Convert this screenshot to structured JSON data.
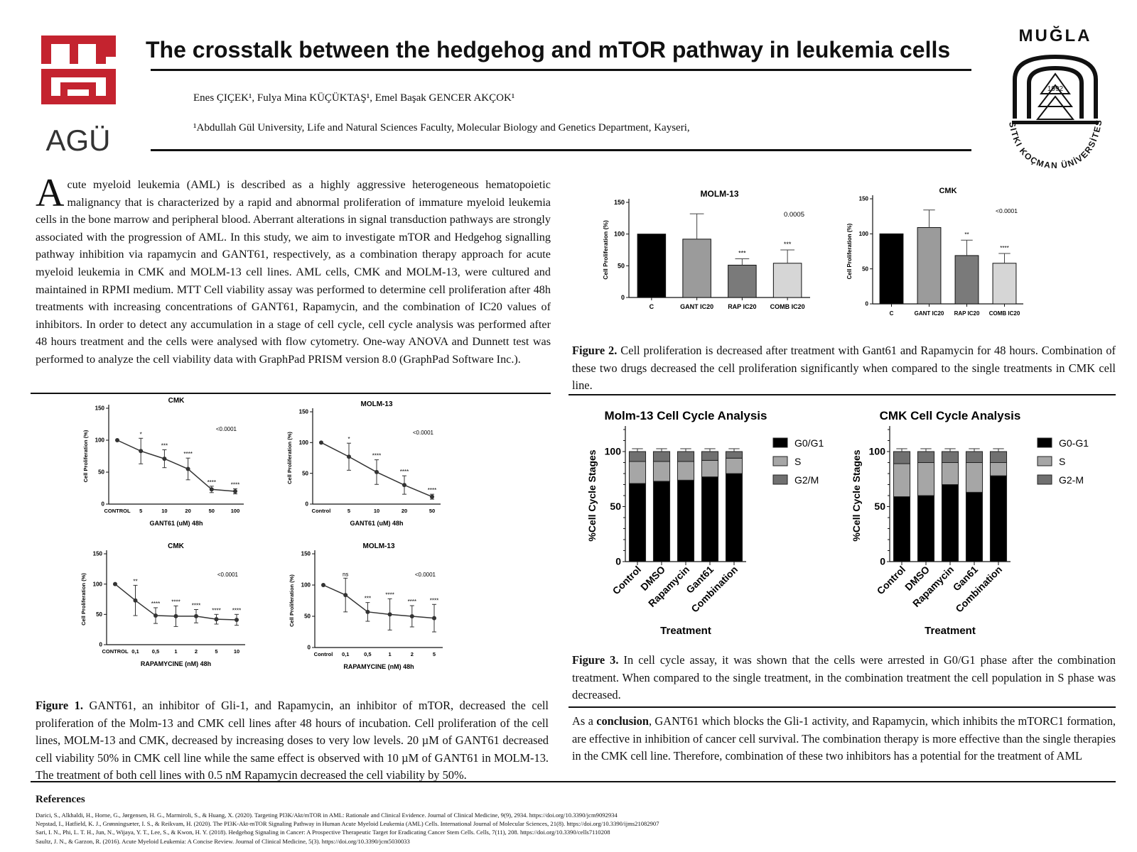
{
  "header": {
    "left_logo_text": "AGÜ",
    "right_logo_text_top": "MUĞLA",
    "right_logo_text_arc": "SITKI KOÇMAN ÜNİVERSİTESİ",
    "right_logo_year": "1992",
    "title": "The crosstalk between the hedgehog and mTOR pathway in leukemia cells",
    "authors": "Enes ÇIÇEK¹, Fulya Mina KÜÇÜKTAŞ¹, Emel Başak GENCER AKÇOK¹",
    "affiliation": "¹Abdullah Gül University, Life and Natural Sciences Faculty, Molecular Biology and Genetics Department, Kayseri,"
  },
  "abstract": {
    "drop_cap": "A",
    "text": "cute myeloid leukemia (AML) is described as a highly aggressive heterogeneous hematopoietic malignancy that is characterized by a rapid and abnormal proliferation of immature myeloid leukemia cells in the bone marrow and peripheral blood. Aberrant alterations in signal transduction pathways are strongly associated with the progression of AML. In this study, we aim to investigate mTOR and Hedgehog signalling pathway inhibition via rapamycin and GANT61, respectively, as a combination therapy approach for acute myeloid leukemia in CMK and MOLM-13 cell lines. AML cells, CMK and MOLM-13, were cultured and maintained in RPMI medium. MTT Cell viability assay was performed to determine cell proliferation after 48h treatments with increasing concentrations of GANT61, Rapamycin, and the combination of IC20 values of inhibitors. In order to detect any accumulation in a stage of cell cycle, cell cycle analysis was performed after 48 hours treatment and the cells were analysed with flow cytometry. One-way ANOVA and Dunnett test was performed to analyze the cell viability data with GraphPad PRISM version 8.0 (GraphPad Software Inc.)."
  },
  "figure1": {
    "label": "Figure 1.",
    "caption": "GANT61, an inhibitor of Gli-1, and Rapamycin, an inhibitor of mTOR, decreased the cell proliferation of the Molm-13 and CMK cell lines after 48 hours of incubation. Cell proliferation of the cell lines, MOLM-13 and CMK, decreased by increasing doses to very low levels. 20 µM of GANT61 decreased cell viability 50% in CMK cell line while the same effect is observed with 10 µM of GANT61 in MOLM-13. The treatment of both cell lines with 0.5 nM Rapamycin decreased the cell viability by 50%."
  },
  "figure2": {
    "label": "Figure 2.",
    "caption": "Cell proliferation is decreased after treatment with Gant61 and Rapamycin for 48 hours. Combination of these two drugs decreased the cell proliferation significantly when compared to the single treatments in CMK cell line."
  },
  "figure3": {
    "label": "Figure 3.",
    "caption": "In cell cycle assay, it was shown that the cells were arrested in G0/G1 phase after the combination treatment. When compared to the single treatment, in the combination treatment the cell population in S phase was decreased."
  },
  "conclusion": {
    "pre": "As a ",
    "bold": "conclusion",
    "text": ", GANT61 which blocks the Gli-1 activity, and Rapamycin, which inhibits the mTORC1 formation, are effective in inhibition of cancer cell survival. The combination therapy is more effective than the single therapies in the CMK cell line. Therefore, combination of these two inhibitors has a potential for the treatment of AML"
  },
  "references": {
    "title": "References",
    "items": [
      "Darici, S., Alkhaldi, H., Horne, G., Jørgensen, H. G., Marmiroli, S., & Huang, X. (2020). Targeting PI3K/Akt/mTOR in AML: Rationale and Clinical Evidence. Journal of Clinical Medicine, 9(9), 2934. https://doi.org/10.3390/jcm9092934",
      "Nepstad, I., Hatfield, K. J., Grønningsæter, I. S., & Reikvam, H. (2020). The PI3K-Akt-mTOR Signaling Pathway in Human Acute Myeloid Leukemia (AML) Cells. International Journal of Molecular Sciences, 21(8). https://doi.org/10.3390/ijms21082907",
      "Sari, I. N., Phi, L. T. H., Jun, N., Wijaya, Y. T., Lee, S., & Kwon, H. Y. (2018). Hedgehog Signaling in Cancer: A Prospective Therapeutic Target for Eradicating Cancer Stem Cells. Cells, 7(11), 208. https://doi.org/10.3390/cells7110208",
      "Saultz, J. N., & Garzon, R. (2016). Acute Myeloid Leukemia: A Concise Review. Journal of Clinical Medicine, 5(3). https://doi.org/10.3390/jcm5030033"
    ]
  },
  "chart_data": [
    {
      "id": "fig1a",
      "type": "line",
      "title": "CMK",
      "categories": [
        "CONTROL",
        "5",
        "10",
        "20",
        "50",
        "100"
      ],
      "values": [
        100,
        83,
        71,
        55,
        23,
        20
      ],
      "errors": [
        0,
        20,
        14,
        17,
        5,
        4
      ],
      "sig": [
        "",
        "*",
        "***",
        "****",
        "****",
        "****"
      ],
      "xlabel": "GANT61 (uM) 48h",
      "ylabel": "Cell Proliferation (%)",
      "ylim": [
        0,
        150
      ],
      "yticks": [
        0,
        50,
        100,
        150
      ],
      "pvalue": "<0.0001"
    },
    {
      "id": "fig1b",
      "type": "line",
      "title": "MOLM-13",
      "categories": [
        "Control",
        "5",
        "10",
        "20",
        "50"
      ],
      "values": [
        100,
        77,
        52,
        31,
        12
      ],
      "errors": [
        0,
        22,
        20,
        15,
        4
      ],
      "sig": [
        "",
        "*",
        "****",
        "****",
        "****"
      ],
      "xlabel": "GANT61 (uM) 48h",
      "ylabel": "Cell Proliferation (%)",
      "ylim": [
        0,
        150
      ],
      "yticks": [
        0,
        50,
        100,
        150
      ],
      "pvalue": "<0.0001"
    },
    {
      "id": "fig1c",
      "type": "line",
      "title": "CMK",
      "categories": [
        "CONTROL",
        "0,1",
        "0,5",
        "1",
        "2",
        "5",
        "10"
      ],
      "values": [
        100,
        73,
        48,
        47,
        47,
        42,
        41
      ],
      "errors": [
        0,
        25,
        13,
        17,
        11,
        8,
        9
      ],
      "sig": [
        "",
        "**",
        "****",
        "****",
        "****",
        "****",
        "****"
      ],
      "xlabel": "RAPAMYCINE (nM) 48h",
      "ylabel": "Cell Proliferation (%)",
      "ylim": [
        0,
        150
      ],
      "yticks": [
        0,
        50,
        100,
        150
      ],
      "pvalue": "<0.0001"
    },
    {
      "id": "fig1d",
      "type": "line",
      "title": "MOLM-13",
      "categories": [
        "Control",
        "0,1",
        "0,5",
        "1",
        "2",
        "5"
      ],
      "values": [
        100,
        84,
        57,
        53,
        50,
        47
      ],
      "errors": [
        0,
        27,
        15,
        25,
        17,
        22
      ],
      "sig": [
        "",
        "ns",
        "***",
        "****",
        "****",
        "****"
      ],
      "xlabel": "RAPAMYCINE (nM) 48h",
      "ylabel": "Cell Proliferation (%)",
      "ylim": [
        0,
        150
      ],
      "yticks": [
        0,
        50,
        100,
        150
      ],
      "pvalue": "<0.0001"
    },
    {
      "id": "fig2a",
      "type": "bar",
      "title": "MOLM-13",
      "categories": [
        "C",
        "GANT IC20",
        "RAP IC20",
        "COMB IC20"
      ],
      "values": [
        100,
        92,
        51,
        54
      ],
      "errors": [
        0,
        40,
        10,
        21
      ],
      "sig": [
        "",
        "",
        "***",
        "***"
      ],
      "colors": [
        "#000000",
        "#9b9b9b",
        "#7a7a7a",
        "#d6d6d6"
      ],
      "ylabel": "Cell Proliferation (%)",
      "ylim": [
        0,
        150
      ],
      "yticks": [
        0,
        50,
        100,
        150
      ],
      "pvalue": "0.0005"
    },
    {
      "id": "fig2b",
      "type": "bar",
      "title": "CMK",
      "categories": [
        "C",
        "GANT IC20",
        "RAP IC20",
        "COMB IC20"
      ],
      "values": [
        100,
        109,
        69,
        58
      ],
      "errors": [
        0,
        25,
        22,
        14
      ],
      "sig": [
        "",
        "",
        "**",
        "****"
      ],
      "colors": [
        "#000000",
        "#9b9b9b",
        "#7a7a7a",
        "#d6d6d6"
      ],
      "ylabel": "Cell Proliferation (%)",
      "ylim": [
        0,
        150
      ],
      "yticks": [
        0,
        50,
        100,
        150
      ],
      "pvalue": "<0.0001"
    },
    {
      "id": "fig3a",
      "type": "bar",
      "stacked": true,
      "title": "Molm-13 Cell Cycle Analysis",
      "categories": [
        "Control",
        "DMSO",
        "Rapamycin",
        "Gant61",
        "Combination"
      ],
      "series": [
        {
          "name": "G0/G1",
          "values": [
            71,
            73,
            74,
            77,
            80
          ],
          "color": "#000000"
        },
        {
          "name": "S",
          "values": [
            20,
            18,
            17,
            15,
            14
          ],
          "color": "#a6a6a6"
        },
        {
          "name": "G2/M",
          "values": [
            9,
            9,
            9,
            8,
            6
          ],
          "color": "#707070"
        }
      ],
      "xlabel": "Treatment",
      "ylabel": "%Cell Cycle Stages",
      "ylim": [
        0,
        120
      ],
      "yticks": [
        0,
        50,
        100
      ]
    },
    {
      "id": "fig3b",
      "type": "bar",
      "stacked": true,
      "title": "CMK Cell Cycle Analysis",
      "categories": [
        "Control",
        "DMSO",
        "Rapamycin",
        "Gan61",
        "Combination"
      ],
      "series": [
        {
          "name": "G0-G1",
          "values": [
            59,
            60,
            70,
            63,
            78
          ],
          "color": "#000000"
        },
        {
          "name": "S",
          "values": [
            30,
            30,
            20,
            27,
            12
          ],
          "color": "#a6a6a6"
        },
        {
          "name": "G2-M",
          "values": [
            11,
            10,
            10,
            10,
            10
          ],
          "color": "#707070"
        }
      ],
      "xlabel": "Treatment",
      "ylabel": "%Cell Cycle Stages",
      "ylim": [
        0,
        120
      ],
      "yticks": [
        0,
        50,
        100
      ]
    }
  ]
}
